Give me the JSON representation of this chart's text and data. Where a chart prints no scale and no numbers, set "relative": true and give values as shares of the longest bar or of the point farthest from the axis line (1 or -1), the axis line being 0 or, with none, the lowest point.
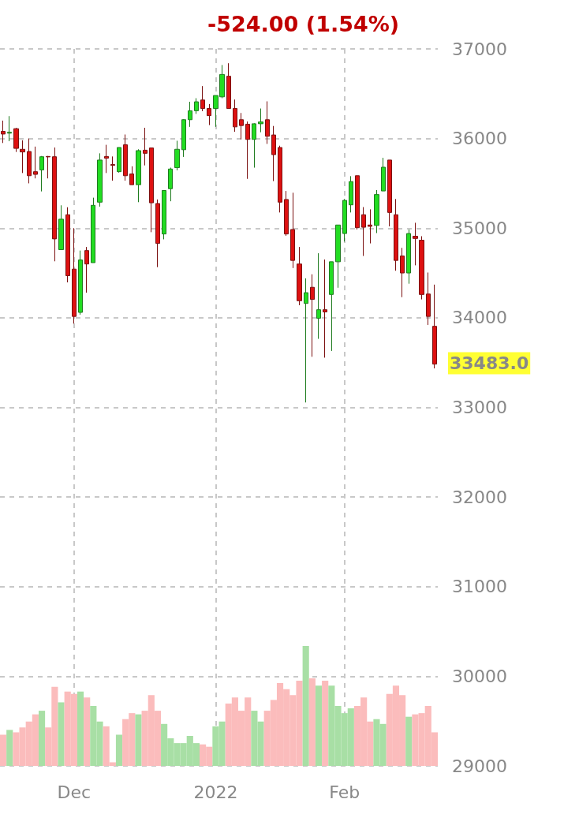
{
  "chart_data": [
    {
      "type": "candlestick",
      "title": "-524.00 (1.54%)",
      "categories": [
        null,
        null,
        null,
        null,
        null,
        null,
        null,
        null,
        null,
        null,
        null,
        "Dec",
        null,
        null,
        null,
        null,
        null,
        null,
        null,
        null,
        null,
        null,
        null,
        null,
        null,
        null,
        null,
        null,
        null,
        null,
        null,
        null,
        null,
        "2022",
        null,
        null,
        null,
        null,
        null,
        null,
        null,
        null,
        null,
        null,
        null,
        null,
        null,
        null,
        null,
        null,
        null,
        null,
        null,
        "Feb",
        null,
        null,
        null,
        null,
        null,
        null,
        null,
        null,
        null,
        null,
        null,
        null,
        null,
        null
      ],
      "ohlc": [
        [
          36080,
          36200,
          35950,
          36050
        ],
        [
          36060,
          36250,
          35970,
          36070
        ],
        [
          36110,
          36120,
          35850,
          35890
        ],
        [
          35880,
          35980,
          35615,
          35850
        ],
        [
          35855,
          36000,
          35500,
          35585
        ],
        [
          35630,
          35910,
          35555,
          35600
        ],
        [
          35650,
          35805,
          35410,
          35797
        ],
        [
          35800,
          35805,
          35555,
          35795
        ],
        [
          35797,
          35900,
          34630,
          34880
        ],
        [
          34760,
          35255,
          34760,
          35100
        ],
        [
          35150,
          35233,
          34395,
          34470
        ],
        [
          34543,
          35000,
          33935,
          34015
        ],
        [
          34060,
          34750,
          34035,
          34645
        ],
        [
          34750,
          34790,
          34280,
          34600
        ],
        [
          34615,
          35340,
          34615,
          35255
        ],
        [
          35290,
          35835,
          35240,
          35760
        ],
        [
          35800,
          35930,
          35615,
          35780
        ],
        [
          35710,
          35800,
          35530,
          35700
        ],
        [
          35630,
          35900,
          35620,
          35900
        ],
        [
          35930,
          36045,
          35530,
          35585
        ],
        [
          35605,
          35690,
          35485,
          35485
        ],
        [
          35485,
          35880,
          35290,
          35865
        ],
        [
          35870,
          36120,
          35700,
          35835
        ],
        [
          35895,
          35895,
          34955,
          35283
        ],
        [
          35275,
          35320,
          34565,
          34830
        ],
        [
          34935,
          35420,
          34875,
          35420
        ],
        [
          35440,
          35675,
          35300,
          35660
        ],
        [
          35675,
          35975,
          35645,
          35880
        ],
        [
          35875,
          36215,
          35795,
          36210
        ],
        [
          36210,
          36410,
          36130,
          36310
        ],
        [
          36310,
          36450,
          36275,
          36410
        ],
        [
          36430,
          36585,
          36305,
          36335
        ],
        [
          36335,
          36385,
          36150,
          36255
        ],
        [
          36335,
          36480,
          36130,
          36480
        ],
        [
          36465,
          36820,
          36450,
          36715
        ],
        [
          36695,
          36840,
          36335,
          36335
        ],
        [
          36335,
          36435,
          36075,
          36130
        ],
        [
          36210,
          36285,
          35990,
          36145
        ],
        [
          36160,
          36190,
          35550,
          35990
        ],
        [
          35990,
          36170,
          35675,
          36165
        ],
        [
          36165,
          36335,
          36070,
          36185
        ],
        [
          36210,
          36415,
          35940,
          36025
        ],
        [
          36040,
          36140,
          35525,
          35820
        ],
        [
          35900,
          35920,
          35175,
          35290
        ],
        [
          35320,
          35415,
          34915,
          34935
        ],
        [
          34985,
          35395,
          34555,
          34640
        ],
        [
          34600,
          34790,
          34140,
          34190
        ],
        [
          34160,
          34440,
          33055,
          34280
        ],
        [
          34340,
          34485,
          33565,
          34205
        ],
        [
          33995,
          34720,
          33765,
          34090
        ],
        [
          34090,
          34650,
          33555,
          34065
        ],
        [
          34260,
          34625,
          33630,
          34625
        ],
        [
          34625,
          35035,
          34335,
          35035
        ],
        [
          34940,
          35325,
          34850,
          35310
        ],
        [
          35260,
          35580,
          35175,
          35520
        ],
        [
          35585,
          35585,
          34985,
          35005
        ],
        [
          35150,
          35235,
          34690,
          35010
        ],
        [
          35035,
          35210,
          34830,
          35020
        ],
        [
          35030,
          35425,
          34945,
          35375
        ],
        [
          35415,
          35785,
          35415,
          35680
        ],
        [
          35760,
          35760,
          35020,
          35175
        ],
        [
          35150,
          35325,
          34525,
          34640
        ],
        [
          34690,
          34780,
          34230,
          34500
        ],
        [
          34500,
          34985,
          34380,
          34940
        ],
        [
          34910,
          35060,
          34585,
          34885
        ],
        [
          34865,
          34910,
          34205,
          34260
        ],
        [
          34265,
          34505,
          33920,
          34015
        ],
        [
          33905,
          34370,
          33435,
          33483
        ]
      ],
      "ylim": [
        29000,
        37000
      ],
      "yticks": [
        29000,
        30000,
        31000,
        32000,
        33000,
        34000,
        35000,
        36000,
        37000
      ],
      "grid": true,
      "annotations": [
        "33483.0"
      ]
    },
    {
      "type": "bar",
      "relative": true,
      "categories": [
        null,
        null,
        null,
        null,
        null,
        null,
        null,
        null,
        null,
        null,
        null,
        null,
        null,
        null,
        null,
        null,
        null,
        null,
        null,
        null,
        null,
        null,
        null,
        null,
        null,
        null,
        null,
        null,
        null,
        null,
        null,
        null,
        null,
        null,
        null,
        null,
        null,
        null,
        null,
        null,
        null,
        null,
        null,
        null,
        null,
        null,
        null,
        null,
        null,
        null,
        null,
        null,
        null,
        null,
        null,
        null,
        null,
        null,
        null,
        null,
        null,
        null,
        null,
        null,
        null,
        null,
        null,
        null
      ],
      "values": [
        0.26,
        0.3,
        0.28,
        0.32,
        0.37,
        0.43,
        0.46,
        0.32,
        0.66,
        0.53,
        0.62,
        0.6,
        0.62,
        0.57,
        0.5,
        0.37,
        0.33,
        0.03,
        0.26,
        0.39,
        0.44,
        0.43,
        0.46,
        0.59,
        0.46,
        0.35,
        0.23,
        0.19,
        0.19,
        0.25,
        0.19,
        0.18,
        0.16,
        0.33,
        0.37,
        0.52,
        0.57,
        0.46,
        0.57,
        0.46,
        0.37,
        0.46,
        0.55,
        0.69,
        0.64,
        0.59,
        0.71,
        1,
        0.73,
        0.67,
        0.71,
        0.67,
        0.5,
        0.44,
        0.48,
        0.5,
        0.57,
        0.37,
        0.39,
        0.35,
        0.6,
        0.67,
        0.59,
        0.41,
        0.43,
        0.44,
        0.5,
        0.28
      ],
      "colors": [
        "#fbbcbc",
        "#a8dfa5",
        "#fbbcbc",
        "#fbbcbc",
        "#fbbcbc",
        "#fbbcbc",
        "#a8dfa5",
        "#fbbcbc",
        "#fbbcbc",
        "#a8dfa5",
        "#fbbcbc",
        "#fbbcbc",
        "#a8dfa5",
        "#fbbcbc",
        "#a8dfa5",
        "#a8dfa5",
        "#fbbcbc",
        "#fbbcbc",
        "#a8dfa5",
        "#fbbcbc",
        "#fbbcbc",
        "#a8dfa5",
        "#fbbcbc",
        "#fbbcbc",
        "#fbbcbc",
        "#a8dfa5",
        "#a8dfa5",
        "#a8dfa5",
        "#a8dfa5",
        "#a8dfa5",
        "#a8dfa5",
        "#fbbcbc",
        "#fbbcbc",
        "#a8dfa5",
        "#a8dfa5",
        "#fbbcbc",
        "#fbbcbc",
        "#fbbcbc",
        "#fbbcbc",
        "#a8dfa5",
        "#a8dfa5",
        "#fbbcbc",
        "#fbbcbc",
        "#fbbcbc",
        "#fbbcbc",
        "#fbbcbc",
        "#fbbcbc",
        "#a8dfa5",
        "#fbbcbc",
        "#a8dfa5",
        "#fbbcbc",
        "#a8dfa5",
        "#a8dfa5",
        "#a8dfa5",
        "#a8dfa5",
        "#fbbcbc",
        "#fbbcbc",
        "#fbbcbc",
        "#a8dfa5",
        "#a8dfa5",
        "#fbbcbc",
        "#fbbcbc",
        "#fbbcbc",
        "#a8dfa5",
        "#fbbcbc",
        "#fbbcbc",
        "#fbbcbc",
        "#fbbcbc"
      ]
    }
  ]
}
